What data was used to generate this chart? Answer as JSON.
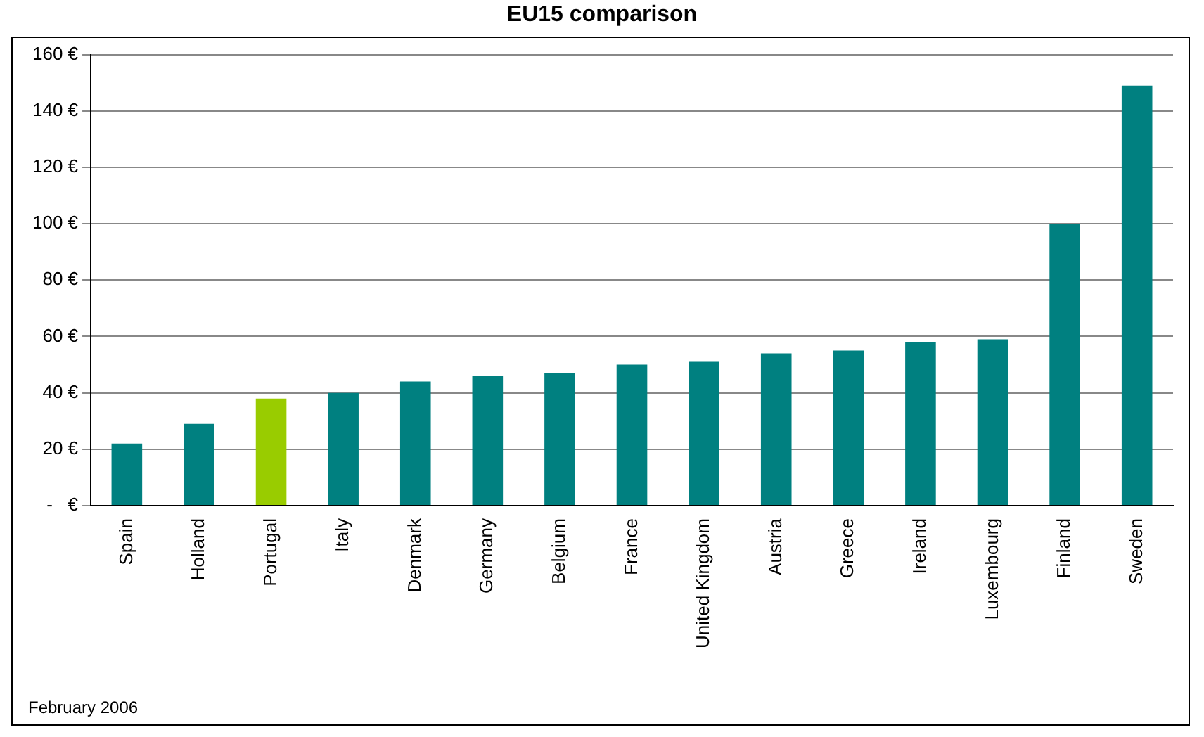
{
  "chart_data": {
    "type": "bar",
    "title": "EU15 comparison",
    "categories": [
      "Spain",
      "Holland",
      "Portugal",
      "Italy",
      "Denmark",
      "Germany",
      "Belgium",
      "France",
      "United Kingdom",
      "Austria",
      "Greece",
      "Ireland",
      "Luxembourg",
      "Finland",
      "Sweden"
    ],
    "values": [
      22,
      29,
      38,
      40,
      44,
      46,
      47,
      50,
      51,
      54,
      55,
      58,
      59,
      100,
      149
    ],
    "colors": [
      "#008080",
      "#008080",
      "#99cc00",
      "#008080",
      "#008080",
      "#008080",
      "#008080",
      "#008080",
      "#008080",
      "#008080",
      "#008080",
      "#008080",
      "#008080",
      "#008080",
      "#008080"
    ],
    "ylim": [
      0,
      160
    ],
    "yticks": [
      {
        "value": 0,
        "label": "-   €"
      },
      {
        "value": 20,
        "label": "20 €"
      },
      {
        "value": 40,
        "label": "40 €"
      },
      {
        "value": 60,
        "label": "60 €"
      },
      {
        "value": 80,
        "label": "80 €"
      },
      {
        "value": 100,
        "label": "100 €"
      },
      {
        "value": 120,
        "label": "120 €"
      },
      {
        "value": 140,
        "label": "140 €"
      },
      {
        "value": 160,
        "label": "160 €"
      }
    ],
    "grid": "y",
    "legend": false,
    "annotations": [
      "February 2006"
    ]
  }
}
